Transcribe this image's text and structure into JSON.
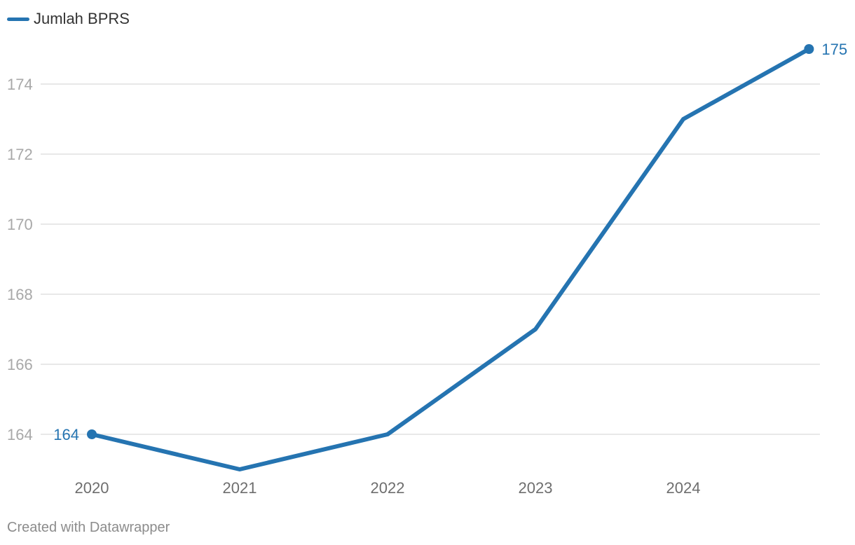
{
  "legend": {
    "label": "Jumlah BPRS",
    "icon": "legend-line-icon"
  },
  "credit": "Created with Datawrapper",
  "colors": {
    "series": "#2574b1",
    "grid": "#e0e0e0",
    "y_tick_text": "#a8a8a8",
    "x_tick_text": "#6e6e6e",
    "credit": "#8c8c8c"
  },
  "chart_data": {
    "type": "line",
    "title": "",
    "xlabel": "",
    "ylabel": "",
    "x": [
      2020,
      2021,
      2022,
      2023,
      2024,
      2024.85
    ],
    "x_ticks": [
      2020,
      2021,
      2022,
      2023,
      2024
    ],
    "series": [
      {
        "name": "Jumlah BPRS",
        "values": [
          164,
          163,
          164,
          167,
          173,
          175
        ]
      }
    ],
    "y_ticks": [
      164,
      166,
      168,
      170,
      172,
      174
    ],
    "ylim": [
      162.9,
      175.4
    ],
    "grid": true,
    "legend_position": "top-left",
    "annotations": [
      {
        "point_index": 0,
        "label": "164",
        "side": "left"
      },
      {
        "point_index": 5,
        "label": "175",
        "side": "right"
      }
    ]
  }
}
